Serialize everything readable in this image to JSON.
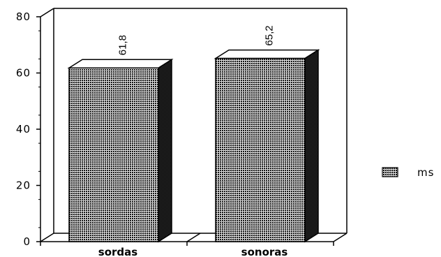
{
  "chart_data": {
    "type": "bar",
    "categories": [
      "sordas",
      "sonoras"
    ],
    "series": [
      {
        "name": "ms",
        "values": [
          61.8,
          65.2
        ]
      }
    ],
    "data_labels": [
      "61,8",
      "65,2"
    ],
    "y_ticks": [
      "0",
      "20",
      "40",
      "60",
      "80"
    ],
    "ylim": [
      0,
      80
    ],
    "legend_position": "right",
    "grid": false,
    "style": "3d-bars-dotted-pattern"
  }
}
